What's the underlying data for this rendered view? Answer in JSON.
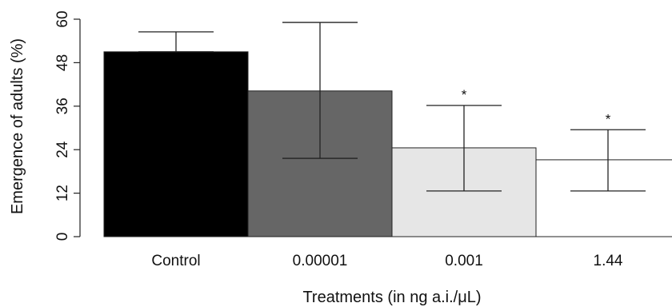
{
  "chart_data": {
    "type": "bar",
    "xlabel": "Treatments (in ng a.i./μL)",
    "ylabel": "Emergence of adults (%)",
    "ylim": [
      0,
      60
    ],
    "yticks": [
      "0",
      "12",
      "24",
      "36",
      "48",
      "60"
    ],
    "grid": false,
    "categories": [
      "Control",
      "0.00001",
      "0.001",
      "1.44"
    ],
    "values": [
      51.0,
      40.2,
      24.5,
      21.2
    ],
    "error_upper": [
      56.5,
      59.1,
      36.2,
      29.5
    ],
    "error_lower": [
      51.0,
      21.6,
      12.6,
      12.6
    ],
    "significance": [
      "",
      "",
      "*",
      "*"
    ],
    "bar_colors": [
      "#000000",
      "#666666",
      "#e6e6e6",
      "#ffffff"
    ]
  }
}
